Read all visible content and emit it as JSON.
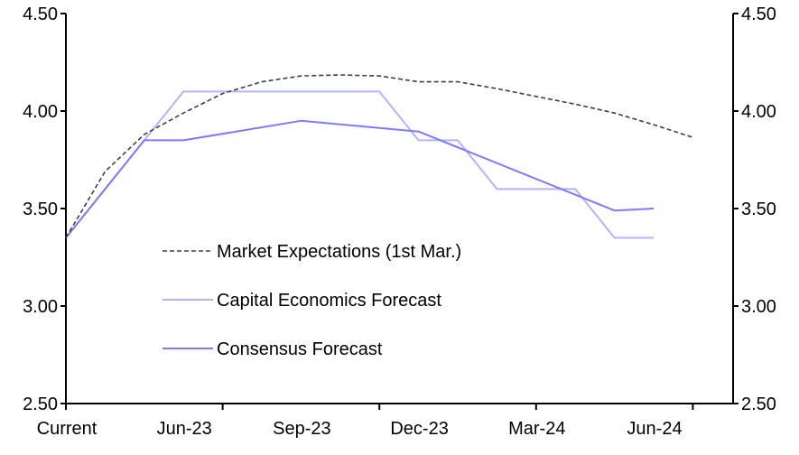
{
  "chart_data": {
    "type": "line",
    "title": "",
    "xlabel": "",
    "ylabel": "",
    "ylim": [
      2.5,
      4.5
    ],
    "y_ticks": [
      "2.50",
      "3.00",
      "3.50",
      "4.00",
      "4.50"
    ],
    "y_tick_values": [
      2.5,
      3.0,
      3.5,
      4.0,
      4.5
    ],
    "x_range_months": [
      0,
      17
    ],
    "x_tick_months": [
      0,
      4,
      8,
      12,
      16
    ],
    "x_labels": [
      {
        "label": "Current",
        "month": 0
      },
      {
        "label": "Jun-23",
        "month": 3
      },
      {
        "label": "Sep-23",
        "month": 6
      },
      {
        "label": "Dec-23",
        "month": 9
      },
      {
        "label": "Mar-24",
        "month": 12
      },
      {
        "label": "Jun-24",
        "month": 15
      }
    ],
    "grid": false,
    "legend_position": "bottom-left-inside",
    "series": [
      {
        "name": "Market Expectations (1st Mar.)",
        "color": "#404040",
        "style": "dashed",
        "x": [
          0,
          1,
          2,
          3,
          4,
          5,
          6,
          7,
          8,
          9,
          10,
          11,
          12,
          13,
          14,
          15,
          16
        ],
        "values": [
          3.35,
          3.69,
          3.88,
          3.99,
          4.09,
          4.15,
          4.18,
          4.185,
          4.18,
          4.15,
          4.15,
          4.115,
          4.075,
          4.035,
          3.99,
          3.93,
          3.865
        ]
      },
      {
        "name": "Capital Economics Forecast",
        "color": "#b3b3ff",
        "style": "solid",
        "x": [
          0,
          2,
          3,
          8,
          9,
          10,
          11,
          13,
          14,
          15
        ],
        "values": [
          3.35,
          3.85,
          4.1,
          4.1,
          3.85,
          3.85,
          3.6,
          3.6,
          3.35,
          3.35
        ]
      },
      {
        "name": "Consensus Forecast",
        "color": "#7b7bff",
        "style": "solid",
        "x": [
          0,
          2,
          3,
          6,
          9,
          14,
          15
        ],
        "values": [
          3.35,
          3.85,
          3.85,
          3.95,
          3.895,
          3.49,
          3.5
        ]
      }
    ]
  }
}
